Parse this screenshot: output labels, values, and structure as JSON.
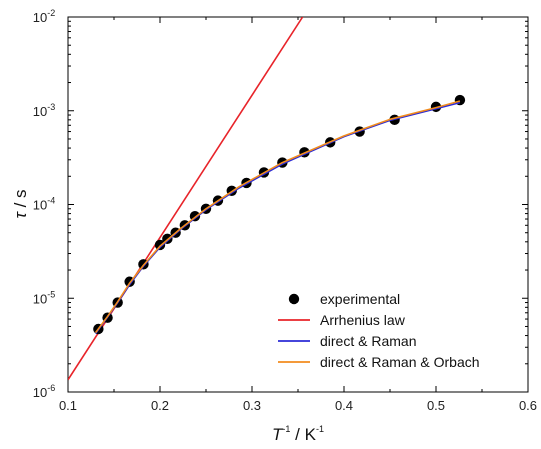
{
  "chart_data": {
    "type": "scatter",
    "xlabel": {
      "main": "T",
      "main_sup": "-1",
      "unit": " / K",
      "unit_sup": "-1"
    },
    "ylabel": {
      "main": "τ",
      "unit": " / s"
    },
    "xlim": [
      0.1,
      0.6
    ],
    "ylim": [
      1e-06,
      0.01
    ],
    "y_scale": "log",
    "x_ticks": [
      "0.1",
      "0.2",
      "0.3",
      "0.4",
      "0.5",
      "0.6"
    ],
    "y_ticks": [
      {
        "value": 1e-06,
        "mant": "10",
        "exp": "-6"
      },
      {
        "value": 1e-05,
        "mant": "10",
        "exp": "-5"
      },
      {
        "value": 0.0001,
        "mant": "10",
        "exp": "-4"
      },
      {
        "value": 0.001,
        "mant": "10",
        "exp": "-3"
      },
      {
        "value": 0.01,
        "mant": "10",
        "exp": "-2"
      }
    ],
    "grid": false,
    "legend_position": "bottom-right",
    "series": [
      {
        "name": "experimental",
        "kind": "scatter",
        "color": "#000000",
        "x": [
          0.133,
          0.143,
          0.154,
          0.167,
          0.182,
          0.2,
          0.208,
          0.217,
          0.227,
          0.238,
          0.25,
          0.263,
          0.278,
          0.294,
          0.313,
          0.333,
          0.357,
          0.385,
          0.417,
          0.455,
          0.5,
          0.526
        ],
        "y": [
          4.7e-06,
          6.2e-06,
          9e-06,
          1.5e-05,
          2.3e-05,
          3.7e-05,
          4.3e-05,
          5e-05,
          6e-05,
          7.5e-05,
          9e-05,
          0.00011,
          0.00014,
          0.00017,
          0.00022,
          0.00028,
          0.00036,
          0.00046,
          0.0006,
          0.0008,
          0.0011,
          0.0013
        ]
      },
      {
        "name": "Arrhenius law",
        "kind": "line",
        "color": "#e8242a",
        "x": [
          0.1,
          0.355
        ],
        "y": [
          1.35e-06,
          0.01
        ]
      },
      {
        "name": "direct & Raman",
        "kind": "line",
        "color": "#2b2bd6",
        "x": [
          0.13,
          0.143,
          0.154,
          0.167,
          0.182,
          0.2,
          0.222,
          0.25,
          0.286,
          0.333,
          0.4,
          0.45,
          0.5,
          0.526
        ],
        "y": [
          4.2e-06,
          6.3e-06,
          9e-06,
          1.4e-05,
          2.2e-05,
          3.5e-05,
          5.4e-05,
          8.8e-05,
          0.00015,
          0.00027,
          0.00053,
          0.00079,
          0.00105,
          0.00122
        ]
      },
      {
        "name": "direct & Raman & Orbach",
        "kind": "line",
        "color": "#f28c1e",
        "x": [
          0.13,
          0.143,
          0.154,
          0.167,
          0.182,
          0.2,
          0.222,
          0.25,
          0.286,
          0.333,
          0.4,
          0.45,
          0.5,
          0.526
        ],
        "y": [
          4.3e-06,
          6.4e-06,
          9.2e-06,
          1.45e-05,
          2.25e-05,
          3.6e-05,
          5.5e-05,
          9e-05,
          0.000155,
          0.00028,
          0.00054,
          0.00081,
          0.00108,
          0.00127
        ]
      }
    ]
  }
}
